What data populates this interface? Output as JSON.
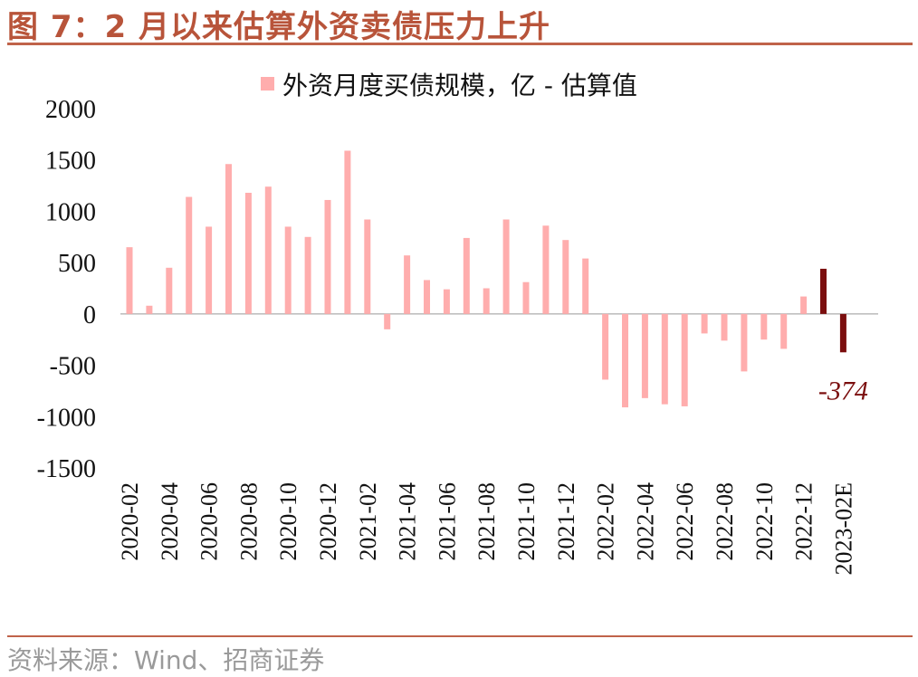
{
  "figure": {
    "title": "图 7：2 月以来估算外资卖债压力上升",
    "source": "资料来源：Wind、招商证券"
  },
  "colors": {
    "primary": "#FFADAD",
    "highlight": "#7B0E0E",
    "rule": "#C0634A",
    "title": "#B8543A"
  },
  "chart_data": {
    "type": "bar",
    "legend": "外资月度买债规模，亿 - 估算值",
    "legend_position": "top",
    "grid": false,
    "ylim": [
      -1500,
      2000
    ],
    "yticks": [
      2000,
      1500,
      1000,
      500,
      0,
      -500,
      -1000,
      -1500
    ],
    "categories": [
      "2020-02",
      "2020-03",
      "2020-04",
      "2020-05",
      "2020-06",
      "2020-07",
      "2020-08",
      "2020-09",
      "2020-10",
      "2020-11",
      "2020-12",
      "2021-01",
      "2021-02",
      "2021-03",
      "2021-04",
      "2021-05",
      "2021-06",
      "2021-07",
      "2021-08",
      "2021-09",
      "2021-10",
      "2021-11",
      "2021-12",
      "2022-01",
      "2022-02",
      "2022-03",
      "2022-04",
      "2022-05",
      "2022-06",
      "2022-07",
      "2022-08",
      "2022-09",
      "2022-10",
      "2022-11",
      "2022-12",
      "2023-01",
      "2023-02E"
    ],
    "tick_labels": [
      "2020-02",
      "",
      "2020-04",
      "",
      "2020-06",
      "",
      "2020-08",
      "",
      "2020-10",
      "",
      "2020-12",
      "",
      "2021-02",
      "",
      "2021-04",
      "",
      "2021-06",
      "",
      "2021-08",
      "",
      "2021-10",
      "",
      "2021-12",
      "",
      "2022-02",
      "",
      "2022-04",
      "",
      "2022-06",
      "",
      "2022-08",
      "",
      "2022-10",
      "",
      "2022-12",
      "",
      "2023-02E"
    ],
    "values": [
      650,
      80,
      450,
      1140,
      850,
      1460,
      1180,
      1240,
      850,
      750,
      1110,
      1590,
      920,
      -150,
      570,
      330,
      240,
      740,
      250,
      920,
      310,
      860,
      720,
      540,
      -640,
      -910,
      -820,
      -880,
      -900,
      -190,
      -260,
      -560,
      -250,
      -340,
      170,
      440,
      -374
    ],
    "highlighted_indices": [
      35,
      36
    ],
    "annotations": [
      {
        "category": "2023-02E",
        "text": "-374"
      }
    ]
  }
}
